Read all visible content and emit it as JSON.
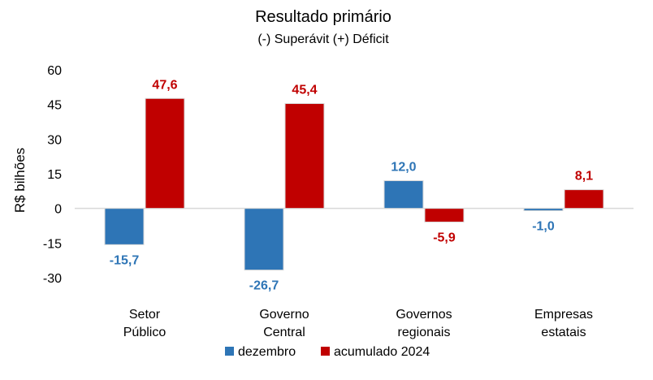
{
  "chart_data": {
    "type": "bar",
    "title": "Resultado primário",
    "subtitle": "(-) Superávit  (+) Déficit",
    "ylabel": "R$ bilhões",
    "xlabel": "",
    "ylim": [
      -30,
      60
    ],
    "yticks": [
      60,
      45,
      30,
      15,
      0,
      -15,
      -30
    ],
    "categories": [
      [
        "Setor",
        "Público"
      ],
      [
        "Governo",
        "Central"
      ],
      [
        "Governos",
        "regionais"
      ],
      [
        "Empresas",
        "estatais"
      ]
    ],
    "series": [
      {
        "name": "dezembro",
        "color": "#2E75B6",
        "values": [
          -15.7,
          -26.7,
          12.0,
          -1.0
        ],
        "labels": [
          "-15,7",
          "-26,7",
          "12,0",
          "-1,0"
        ]
      },
      {
        "name": "acumulado 2024",
        "color": "#C00000",
        "values": [
          47.6,
          45.4,
          -5.9,
          8.1
        ],
        "labels": [
          "47,6",
          "45,4",
          "-5,9",
          "8,1"
        ]
      }
    ],
    "legend": "bottom"
  }
}
